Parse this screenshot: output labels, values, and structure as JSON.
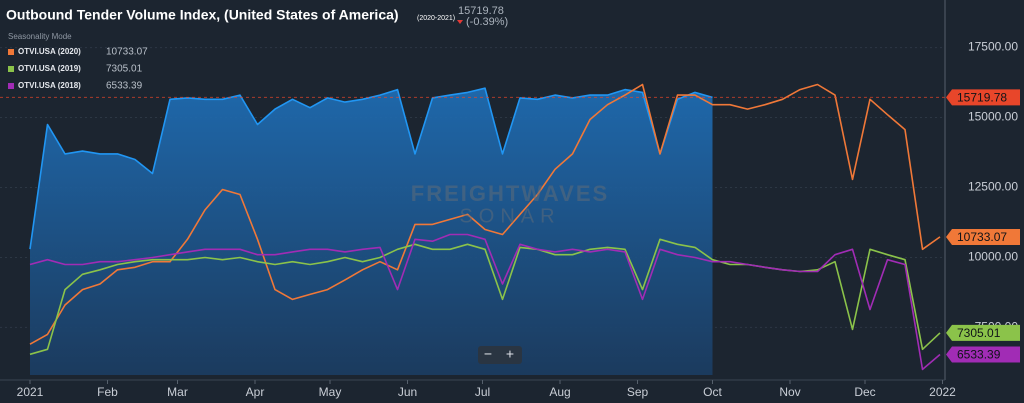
{
  "chart_data": {
    "type": "line",
    "title": "Outbound Tender Volume Index, (United States of America)",
    "title_range": "(2020-2021)",
    "change": "(-0.39%)",
    "mode": "Seasonality Mode",
    "watermark": [
      "FREIGHTWAVES",
      "SONAR"
    ],
    "controls": [
      "−",
      "+"
    ],
    "x": [
      0,
      7,
      14,
      21,
      28,
      35,
      42,
      49,
      56,
      63,
      70,
      77,
      84,
      91,
      98,
      105,
      112,
      119,
      126,
      133,
      140,
      147,
      154,
      161,
      168,
      175,
      182,
      189,
      196,
      203,
      210,
      217,
      224,
      231,
      238,
      245,
      252,
      259,
      266,
      273,
      280,
      287,
      294,
      301,
      308,
      315,
      322,
      329,
      336,
      343,
      350,
      357,
      364
    ],
    "series": [
      {
        "color": "#2196f3",
        "area": true,
        "values": [
          10300,
          14750,
          13700,
          13800,
          13700,
          13700,
          13500,
          13000,
          15650,
          15700,
          15650,
          15650,
          15800,
          14750,
          15300,
          15650,
          15350,
          15700,
          15550,
          15650,
          15800,
          16000,
          13700,
          15700,
          15800,
          15900,
          16050,
          13700,
          15700,
          15650,
          15800,
          15700,
          15800,
          15800,
          16000,
          15900,
          13700,
          15650,
          15900,
          15719.78,
          null,
          null,
          null,
          null,
          null,
          null,
          null,
          null,
          null,
          null,
          null,
          null,
          null
        ]
      },
      {
        "name": "OTVI.USA (2020)",
        "color": "#f07838",
        "values": [
          6900,
          7250,
          8300,
          8850,
          9050,
          9560,
          9650,
          9850,
          9850,
          10650,
          11700,
          12430,
          12250,
          10650,
          8850,
          8500,
          8680,
          8850,
          9200,
          9560,
          9850,
          9560,
          11180,
          11180,
          11360,
          11540,
          11000,
          10820,
          11540,
          12250,
          13150,
          13700,
          14930,
          15460,
          15800,
          16180,
          13700,
          15800,
          15800,
          15460,
          15460,
          15300,
          15460,
          15650,
          16000,
          16180,
          15800,
          12790,
          15650,
          15100,
          14570,
          10290,
          10733.07
        ]
      },
      {
        "name": "OTVI.USA (2019)",
        "color": "#8bc34a",
        "values": [
          6540,
          6720,
          8850,
          9400,
          9560,
          9750,
          9850,
          9920,
          9920,
          9920,
          10000,
          9920,
          10000,
          9850,
          9750,
          9850,
          9750,
          9850,
          10000,
          9850,
          10000,
          10290,
          10470,
          10290,
          10290,
          10470,
          10290,
          8500,
          10360,
          10290,
          10100,
          10100,
          10290,
          10360,
          10290,
          8850,
          10650,
          10470,
          10360,
          9920,
          9750,
          9750,
          9650,
          9560,
          9500,
          9560,
          9850,
          7430,
          10290,
          10100,
          9920,
          6720,
          7305.01
        ]
      },
      {
        "name": "OTVI.USA (2018)",
        "color": "#a12cb5",
        "values": [
          9750,
          9920,
          9750,
          9750,
          9850,
          9850,
          9920,
          10000,
          10100,
          10200,
          10290,
          10290,
          10290,
          10100,
          10100,
          10200,
          10290,
          10290,
          10200,
          10290,
          10360,
          8850,
          10650,
          10580,
          10820,
          10820,
          10650,
          9050,
          10470,
          10290,
          10200,
          10290,
          10200,
          10290,
          10200,
          8500,
          10290,
          10100,
          10000,
          9850,
          9850,
          9750,
          9650,
          9560,
          9500,
          9500,
          10100,
          10290,
          8140,
          9920,
          9750,
          6000,
          6533.39
        ]
      }
    ],
    "price_line_color": "#e8462a",
    "xlim": [
      -12,
      366
    ],
    "xticks": [
      {
        "value": 0,
        "label": "2021"
      },
      {
        "value": 31,
        "label": "Feb"
      },
      {
        "value": 59,
        "label": "Mar"
      },
      {
        "value": 90,
        "label": "Apr"
      },
      {
        "value": 120,
        "label": "May"
      },
      {
        "value": 151,
        "label": "Jun"
      },
      {
        "value": 181,
        "label": "Jul"
      },
      {
        "value": 212,
        "label": "Aug"
      },
      {
        "value": 243,
        "label": "Sep"
      },
      {
        "value": 273,
        "label": "Oct"
      },
      {
        "value": 304,
        "label": "Nov"
      },
      {
        "value": 334,
        "label": "Dec"
      },
      {
        "value": 365,
        "label": "2022"
      }
    ],
    "ylim": [
      5800,
      19200
    ],
    "yticks": [
      {
        "value": 7500,
        "label": "7500.00"
      },
      {
        "value": 10000,
        "label": "10000.00"
      },
      {
        "value": 12500,
        "label": "12500.00"
      },
      {
        "value": 15000,
        "label": "15000.00"
      },
      {
        "value": 17500,
        "label": "17500.00"
      }
    ],
    "grid": true
  }
}
